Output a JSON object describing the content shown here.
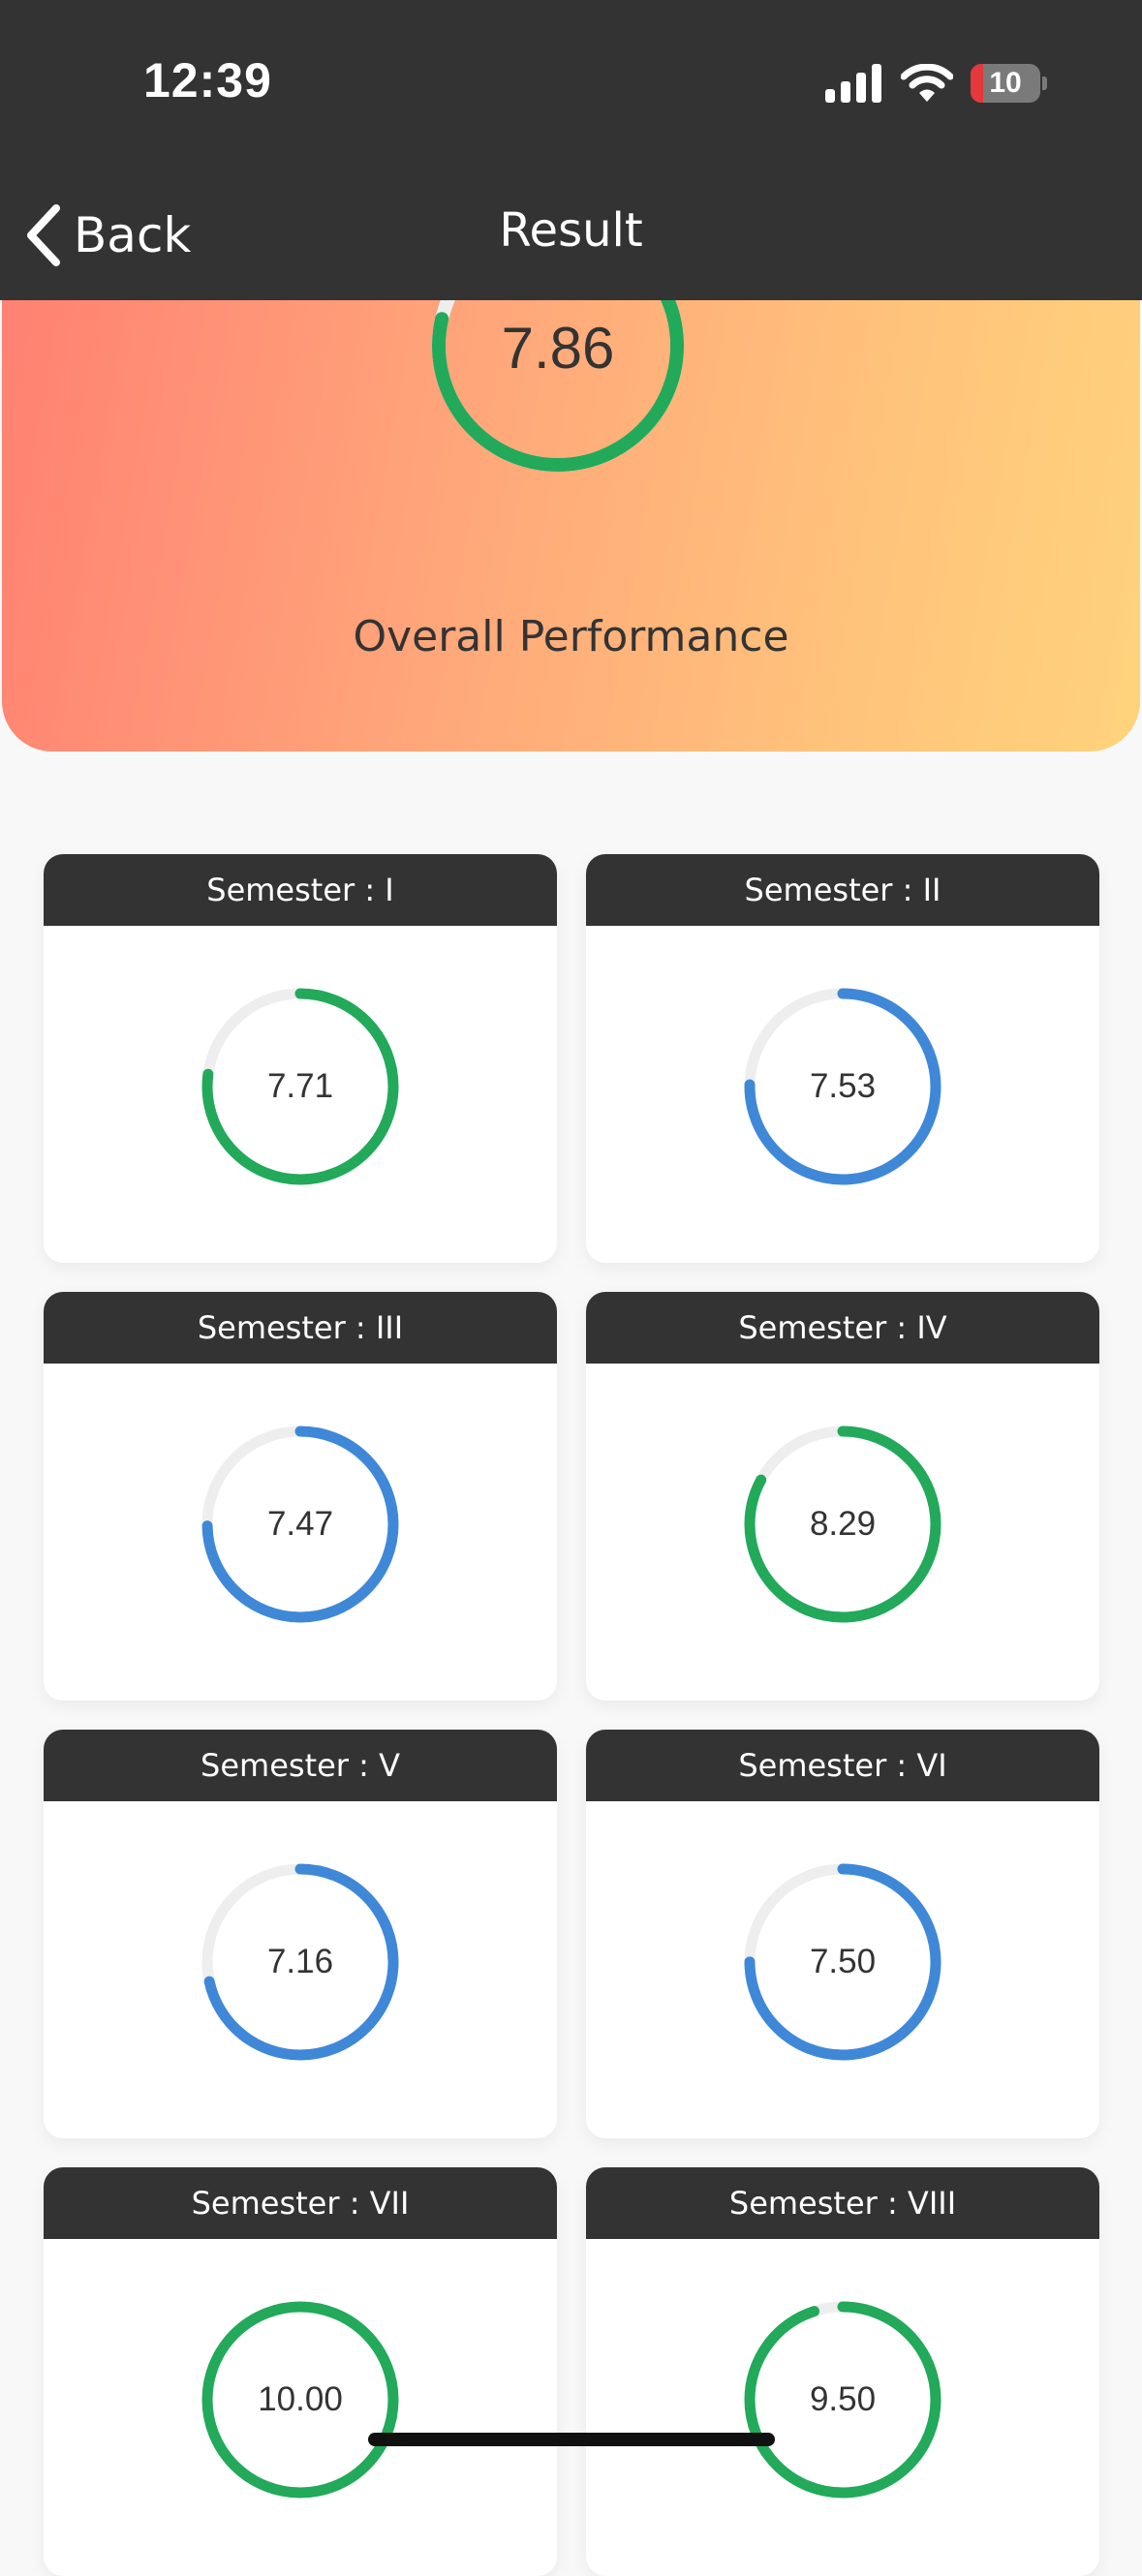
{
  "status_bar": {
    "time": "12:39",
    "battery_text": "10",
    "battery_level": 0.1
  },
  "nav": {
    "back_label": "Back",
    "title": "Result"
  },
  "overall": {
    "value": "7.86",
    "progress": 0.786,
    "color": "#22a95a",
    "label": "Overall Performance"
  },
  "colors": {
    "header_bg": "#333333",
    "track": "#eeeeee",
    "green": "#22a95a",
    "blue": "#3f88d8"
  },
  "semesters": [
    {
      "title": "Semester : I",
      "value": "7.71",
      "progress": 0.771,
      "color": "#22a95a"
    },
    {
      "title": "Semester : II",
      "value": "7.53",
      "progress": 0.753,
      "color": "#3f88d8"
    },
    {
      "title": "Semester : III",
      "value": "7.47",
      "progress": 0.747,
      "color": "#3f88d8"
    },
    {
      "title": "Semester : IV",
      "value": "8.29",
      "progress": 0.829,
      "color": "#22a95a"
    },
    {
      "title": "Semester : V",
      "value": "7.16",
      "progress": 0.716,
      "color": "#3f88d8"
    },
    {
      "title": "Semester : VI",
      "value": "7.50",
      "progress": 0.75,
      "color": "#3f88d8"
    },
    {
      "title": "Semester : VII",
      "value": "10.00",
      "progress": 1.0,
      "color": "#22a95a"
    },
    {
      "title": "Semester : VIII",
      "value": "9.50",
      "progress": 0.95,
      "color": "#22a95a"
    }
  ]
}
